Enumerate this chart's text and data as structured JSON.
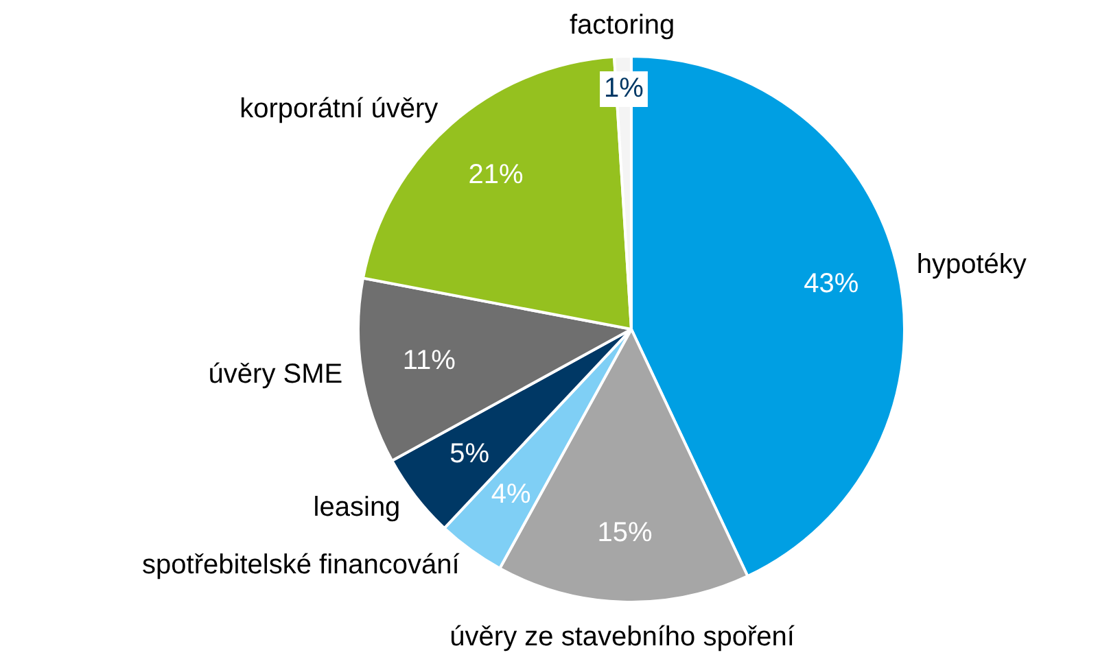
{
  "chart_data": {
    "type": "pie",
    "categories": [
      "hypotéky",
      "úvěry ze stavebního spoření",
      "spotřebitelské financování",
      "leasing",
      "úvěry SME",
      "korporátní úvěry",
      "factoring"
    ],
    "values": [
      43,
      15,
      4,
      5,
      11,
      21,
      1
    ],
    "value_labels": [
      "43%",
      "15%",
      "4%",
      "5%",
      "11%",
      "21%",
      "1%"
    ],
    "colors": [
      "#009fe3",
      "#a6a6a6",
      "#7fcff5",
      "#003865",
      "#6f6f6f",
      "#95c11f",
      "#f4f4f4"
    ],
    "legend": false
  }
}
